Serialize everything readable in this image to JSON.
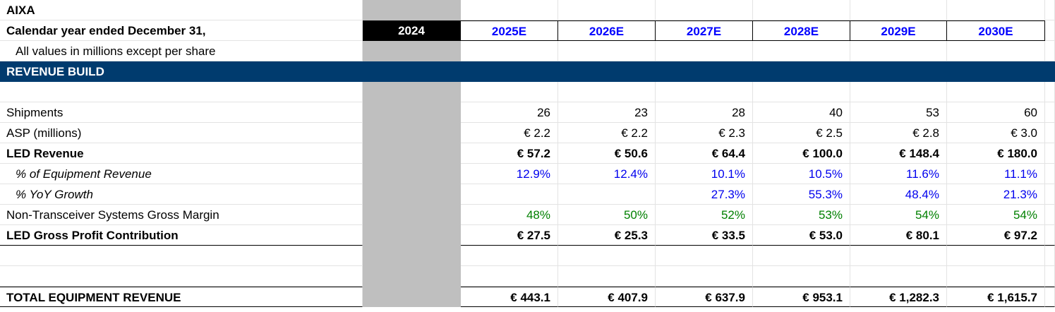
{
  "company": "AIXA",
  "calendar_label": "Calendar year ended December 31,",
  "units_note": "All values in millions except per share",
  "section_header": "REVENUE BUILD",
  "years": [
    "2024",
    "2025E",
    "2026E",
    "2027E",
    "2028E",
    "2029E",
    "2030E"
  ],
  "rows": {
    "shipments": {
      "label": "Shipments",
      "values": [
        "",
        "26",
        "23",
        "28",
        "40",
        "53",
        "60"
      ]
    },
    "asp": {
      "label": "ASP (millions)",
      "values": [
        "",
        "€ 2.2",
        "€ 2.2",
        "€ 2.3",
        "€ 2.5",
        "€ 2.8",
        "€ 3.0"
      ]
    },
    "led_revenue": {
      "label": "LED Revenue",
      "values": [
        "",
        "€ 57.2",
        "€ 50.6",
        "€ 64.4",
        "€ 100.0",
        "€ 148.4",
        "€ 180.0"
      ]
    },
    "pct_equipment": {
      "label": "% of Equipment Revenue",
      "values": [
        "",
        "12.9%",
        "12.4%",
        "10.1%",
        "10.5%",
        "11.6%",
        "11.1%"
      ]
    },
    "yoy_growth": {
      "label": "% YoY Growth",
      "values": [
        "",
        "",
        "",
        "27.3%",
        "55.3%",
        "48.4%",
        "21.3%"
      ]
    },
    "gross_margin": {
      "label": "Non-Transceiver Systems Gross Margin",
      "values": [
        "",
        "48%",
        "50%",
        "52%",
        "53%",
        "54%",
        "54%"
      ]
    },
    "gross_profit": {
      "label": "LED Gross Profit Contribution",
      "values": [
        "",
        "€ 27.5",
        "€ 25.3",
        "€ 33.5",
        "€ 53.0",
        "€ 80.1",
        "€ 97.2"
      ]
    },
    "total_equipment": {
      "label": "TOTAL EQUIPMENT REVENUE",
      "values": [
        "",
        "€ 443.1",
        "€ 407.9",
        "€ 637.9",
        "€ 953.1",
        "€ 1,282.3",
        "€ 1,615.7"
      ]
    }
  },
  "colors": {
    "band": "#003b6e",
    "grey_column": "#bfbfbf",
    "year_header_bg": "#000000",
    "input_blue": "#0000ee",
    "margin_green": "#008000"
  }
}
